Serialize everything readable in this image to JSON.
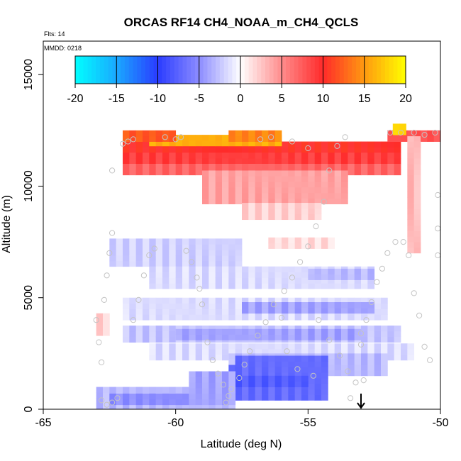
{
  "chart_data": {
    "type": "heatmap",
    "title": "ORCAS RF14 CH4_NOAA_m_CH4_QCLS",
    "flights_label": "Flts: 14",
    "date_label": "MMDD: 0218",
    "xlabel": "Latitude (deg N)",
    "ylabel": "Altitude (m)",
    "xlim": [
      -65,
      -50
    ],
    "ylim": [
      0,
      16500
    ],
    "xticks": [
      -65,
      -60,
      -55,
      -50
    ],
    "yticks": [
      0,
      5000,
      10000,
      15000
    ],
    "colorbar": {
      "range": [
        -20,
        20
      ],
      "ticks": [
        -20,
        -15,
        -10,
        -5,
        0,
        5,
        10,
        15,
        20
      ],
      "colors": {
        "min": "#00ffff",
        "blue": "#2a3cff",
        "zero": "#ffffff",
        "red": "#ff2a2a",
        "max": "#ffff00"
      }
    },
    "arrow_marker": {
      "latitude": -53,
      "altitude_top": 700,
      "altitude_bottom": 0
    },
    "cells_resolution": {
      "dlat": 0.25,
      "dalt": 250
    },
    "regions": [
      {
        "lat": [
          -62,
          -51.5
        ],
        "alt": [
          11500,
          12000
        ],
        "value": 10
      },
      {
        "lat": [
          -62,
          -51.5
        ],
        "alt": [
          11000,
          11500
        ],
        "value": 9
      },
      {
        "lat": [
          -62,
          -51.5
        ],
        "alt": [
          10500,
          11000
        ],
        "value": 7
      },
      {
        "lat": [
          -61,
          -56
        ],
        "alt": [
          11800,
          12100
        ],
        "value": 16
      },
      {
        "lat": [
          -62,
          -60
        ],
        "alt": [
          12000,
          12300
        ],
        "value": 12
      },
      {
        "lat": [
          -58,
          -56
        ],
        "alt": [
          12000,
          12300
        ],
        "value": 14
      },
      {
        "lat": [
          -52,
          -50
        ],
        "alt": [
          12000,
          12400
        ],
        "value": 8
      },
      {
        "lat": [
          -51.8,
          -51.5
        ],
        "alt": [
          12300,
          12600
        ],
        "value": 18
      },
      {
        "lat": [
          -59,
          -53.5
        ],
        "alt": [
          9200,
          10500
        ],
        "value": 4
      },
      {
        "lat": [
          -57.5,
          -54.5
        ],
        "alt": [
          8500,
          9200
        ],
        "value": 2
      },
      {
        "lat": [
          -51.25,
          -50.75
        ],
        "alt": [
          7000,
          12200
        ],
        "value": 3
      },
      {
        "lat": [
          -62.5,
          -57.5
        ],
        "alt": [
          6400,
          7500
        ],
        "value": -2
      },
      {
        "lat": [
          -56.5,
          -54
        ],
        "alt": [
          7200,
          7600
        ],
        "value": 1.5
      },
      {
        "lat": [
          -61,
          -52.5
        ],
        "alt": [
          5400,
          6200
        ],
        "value": -1.5
      },
      {
        "lat": [
          -55,
          -52.5
        ],
        "alt": [
          5800,
          6300
        ],
        "value": -3
      },
      {
        "lat": [
          -62,
          -52
        ],
        "alt": [
          4000,
          5000
        ],
        "value": -1.5
      },
      {
        "lat": [
          -57.5,
          -52.5
        ],
        "alt": [
          4300,
          4700
        ],
        "value": -4
      },
      {
        "lat": [
          -62,
          -51.5
        ],
        "alt": [
          3000,
          3600
        ],
        "value": -2.5
      },
      {
        "lat": [
          -60,
          -53
        ],
        "alt": [
          3100,
          3400
        ],
        "value": -4
      },
      {
        "lat": [
          -63,
          -62.5
        ],
        "alt": [
          3300,
          4200
        ],
        "value": 2
      },
      {
        "lat": [
          -61,
          -51
        ],
        "alt": [
          2200,
          2800
        ],
        "value": -1.5
      },
      {
        "lat": [
          -58,
          -52
        ],
        "alt": [
          1500,
          2400
        ],
        "value": -3
      },
      {
        "lat": [
          -57.75,
          -54.25
        ],
        "alt": [
          400,
          2300
        ],
        "value": -7
      },
      {
        "lat": [
          -58,
          -55
        ],
        "alt": [
          1000,
          1800
        ],
        "value": -8
      },
      {
        "lat": [
          -63,
          -57.75
        ],
        "alt": [
          0,
          800
        ],
        "value": -3
      },
      {
        "lat": [
          -62.5,
          -57.75
        ],
        "alt": [
          200,
          600
        ],
        "value": -5
      },
      {
        "lat": [
          -59.5,
          -57.75
        ],
        "alt": [
          200,
          1500
        ],
        "value": -4
      }
    ],
    "flight_points": [
      [
        -63,
        4000
      ],
      [
        -62.9,
        3000
      ],
      [
        -62.8,
        2100
      ],
      [
        -62.7,
        4900
      ],
      [
        -62.6,
        6000
      ],
      [
        -62.5,
        7000
      ],
      [
        -62.4,
        7900
      ],
      [
        -62.8,
        400
      ],
      [
        -62.6,
        200
      ],
      [
        -62.4,
        300
      ],
      [
        -62.2,
        500
      ],
      [
        -62.0,
        11900
      ],
      [
        -61.8,
        12000
      ],
      [
        -61.6,
        12100
      ],
      [
        -62.4,
        10700
      ],
      [
        -61.6,
        4000
      ],
      [
        -61.4,
        4900
      ],
      [
        -61.2,
        6000
      ],
      [
        -61.0,
        6900
      ],
      [
        -60.8,
        7200
      ],
      [
        -60.4,
        12200
      ],
      [
        -60.0,
        12100
      ],
      [
        -59.8,
        12200
      ],
      [
        -59.6,
        7100
      ],
      [
        -59.4,
        6600
      ],
      [
        -59.2,
        5900
      ],
      [
        -59.1,
        5400
      ],
      [
        -59.0,
        4700
      ],
      [
        -58.8,
        3000
      ],
      [
        -58.6,
        2200
      ],
      [
        -58.4,
        1600
      ],
      [
        -58.2,
        1100
      ],
      [
        -58.0,
        600
      ],
      [
        -58.1,
        300
      ],
      [
        -57.9,
        900
      ],
      [
        -57.6,
        1400
      ],
      [
        -57.4,
        2000
      ],
      [
        -57.2,
        2600
      ],
      [
        -56.9,
        3300
      ],
      [
        -56.6,
        3900
      ],
      [
        -56.3,
        4700
      ],
      [
        -55.9,
        5300
      ],
      [
        -55.6,
        5900
      ],
      [
        -55.3,
        6600
      ],
      [
        -55.0,
        7300
      ],
      [
        -54.7,
        8200
      ],
      [
        -54.4,
        9300
      ],
      [
        -54.2,
        10700
      ],
      [
        -53.9,
        11800
      ],
      [
        -53.6,
        12200
      ],
      [
        -56.8,
        12100
      ],
      [
        -56.4,
        12200
      ],
      [
        -55.6,
        12000
      ],
      [
        -55.0,
        11700
      ],
      [
        -54.6,
        4000
      ],
      [
        -54.2,
        3100
      ],
      [
        -53.8,
        2400
      ],
      [
        -53.5,
        1700
      ],
      [
        -53.2,
        1200
      ],
      [
        -53.0,
        2900
      ],
      [
        -52.8,
        4000
      ],
      [
        -52.6,
        4800
      ],
      [
        -52.4,
        5700
      ],
      [
        -52.2,
        6300
      ],
      [
        -52.0,
        7000
      ],
      [
        -51.7,
        7500
      ],
      [
        -51.4,
        7500
      ],
      [
        -51.2,
        6900
      ],
      [
        -51.0,
        5200
      ],
      [
        -50.8,
        4200
      ],
      [
        -50.6,
        2800
      ],
      [
        -50.4,
        2200
      ],
      [
        -51.9,
        12400
      ],
      [
        -51.5,
        12400
      ],
      [
        -51.0,
        12400
      ],
      [
        -50.6,
        12300
      ],
      [
        -50.2,
        12400
      ],
      [
        -50.1,
        9600
      ],
      [
        -50.1,
        8100
      ],
      [
        -50.1,
        6900
      ],
      [
        -53.0,
        3400
      ],
      [
        -52.9,
        1300
      ],
      [
        -53.4,
        500
      ],
      [
        -55.8,
        2600
      ],
      [
        -55.4,
        1800
      ],
      [
        -54.8,
        1500
      ],
      [
        -56.0,
        4100
      ]
    ]
  }
}
